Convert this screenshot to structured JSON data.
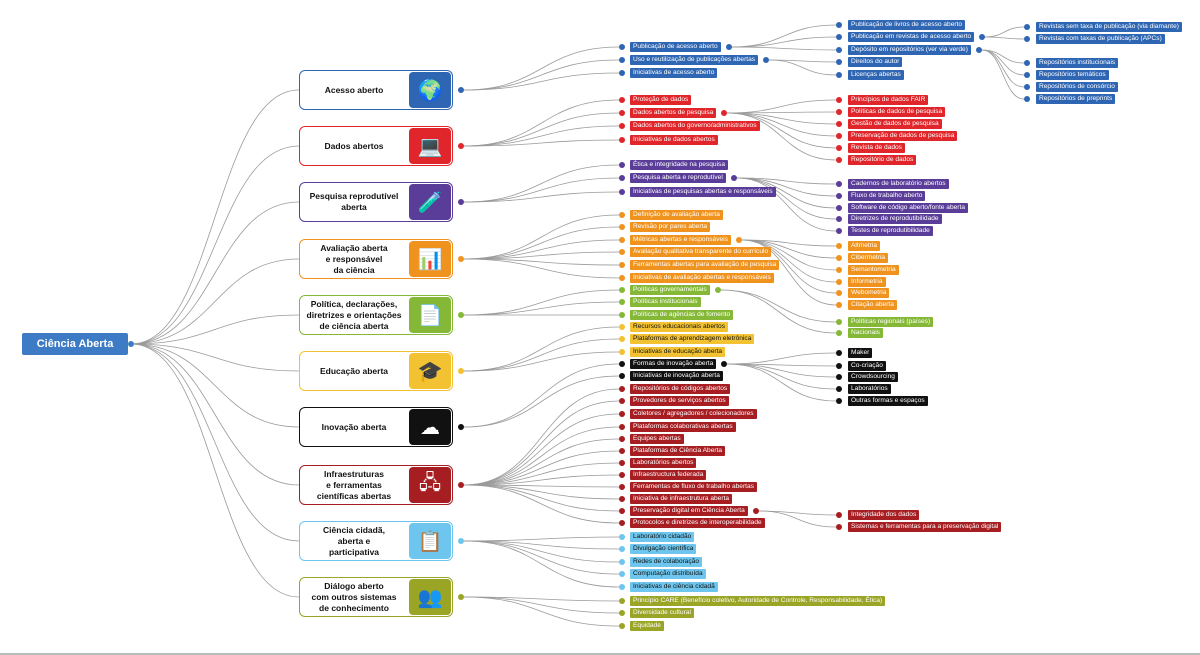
{
  "root": {
    "label": "Ciência Aberta",
    "color": "#3d7cc4"
  },
  "categories": [
    {
      "title": "Acesso aberto",
      "color": "#2f66b3",
      "text": "#ffffff",
      "icon": "globe-magnifier-icon",
      "glyph": "🌍",
      "items": [
        {
          "label": "Publicação de acesso aberto",
          "children": [
            {
              "label": "Publicação de livros de acesso aberto"
            },
            {
              "label": "Publicação em revistas de acesso aberto",
              "children": [
                {
                  "label": "Revistas sem taxa de publicação (via diamante)"
                },
                {
                  "label": "Revistas com taxas de publicação (APCs)"
                }
              ]
            },
            {
              "label": "Depósito em repositórios (ver via verde)",
              "children": [
                {
                  "label": "Repositórios institucionais"
                },
                {
                  "label": "Repositórios temáticos"
                },
                {
                  "label": "Repositórios de consórcio"
                },
                {
                  "label": "Repositórios de preprints"
                }
              ]
            }
          ]
        },
        {
          "label": "Uso e reutilização de publicações abertas",
          "children": [
            {
              "label": "Direitos do autor"
            },
            {
              "label": "Licenças abertas"
            }
          ]
        },
        {
          "label": "Iniciativas de acesso aberto"
        }
      ]
    },
    {
      "title": "Dados abertos",
      "color": "#e0262a",
      "text": "#ffffff",
      "icon": "laptop-data-icon",
      "glyph": "💻",
      "items": [
        {
          "label": "Proteção de dados"
        },
        {
          "label": "Dados abertos de pesquisa",
          "children": [
            {
              "label": "Princípios de dados FAIR"
            },
            {
              "label": "Políticas de dados de pesquisa"
            },
            {
              "label": "Gestão de dados de pesquisa"
            },
            {
              "label": "Preservação de dados de pesquisa"
            },
            {
              "label": "Revista de dados"
            },
            {
              "label": "Repositório de dados"
            }
          ]
        },
        {
          "label": "Dados abertos do governo/administrativos"
        },
        {
          "label": "Iniciativas de dados abertos"
        }
      ]
    },
    {
      "title": "Pesquisa reprodutível\naberta",
      "color": "#5a3d98",
      "text": "#ffffff",
      "icon": "lab-kit-icon",
      "glyph": "🧪",
      "items": [
        {
          "label": "Ética e integridade na pesquisa"
        },
        {
          "label": "Pesquisa aberta e reprodutível",
          "children": [
            {
              "label": "Cadernos de laboratório abertos"
            },
            {
              "label": "Fluxo de trabalho aberto"
            },
            {
              "label": "Software de código aberto/fonte aberta"
            },
            {
              "label": "Diretrizes de reprodutibilidade"
            },
            {
              "label": "Testes de reprodutibilidade"
            }
          ]
        },
        {
          "label": "Iniciativas de pesquisas abertas e responsáveis"
        }
      ]
    },
    {
      "title": "Avaliação aberta\ne responsável\nda ciência",
      "color": "#f0931e",
      "text": "#ffffff",
      "icon": "evaluation-icon",
      "glyph": "📊",
      "items": [
        {
          "label": "Definição de avaliação aberta"
        },
        {
          "label": "Revisão por pares aberta"
        },
        {
          "label": "Métricas abertas e responsáveis",
          "children": [
            {
              "label": "Altmetria"
            },
            {
              "label": "Cibermetria"
            },
            {
              "label": "Semantometria"
            },
            {
              "label": "Informetria"
            },
            {
              "label": "Webometria"
            },
            {
              "label": "Citação aberta"
            }
          ]
        },
        {
          "label": "Avaliação qualitativa transparente do currículo"
        },
        {
          "label": "Ferramentas abertas para avaliação de pesquisa"
        },
        {
          "label": "Iniciativas de avaliação abertas e responsáveis"
        }
      ]
    },
    {
      "title": "Política, declarações,\ndiretrizes e orientações\nde ciência aberta",
      "color": "#84b836",
      "text": "#ffffff",
      "icon": "documents-icon",
      "glyph": "📄",
      "items": [
        {
          "label": "Políticas governamentais",
          "children": [
            {
              "label": "Políticas regionais (países)"
            },
            {
              "label": "Nacionais"
            }
          ]
        },
        {
          "label": "Políticas institucionais"
        },
        {
          "label": "Políticas de agências de fomento"
        }
      ]
    },
    {
      "title": "Educação aberta",
      "color": "#f2c232",
      "text": "#111111",
      "icon": "laptop-education-icon",
      "glyph": "🎓",
      "items": [
        {
          "label": "Recursos educacionais abertos"
        },
        {
          "label": "Plataformas de aprendizagem eletrônica"
        },
        {
          "label": "Iniciativas de educação aberta"
        }
      ]
    },
    {
      "title": "Inovação aberta",
      "color": "#111111",
      "text": "#ffffff",
      "icon": "cloud-innovation-icon",
      "glyph": "☁",
      "items": [
        {
          "label": "Formas de inovação aberta",
          "children": [
            {
              "label": "Maker"
            },
            {
              "label": "Co-criação"
            },
            {
              "label": "Crowdsourcing"
            },
            {
              "label": "Laboratórios"
            },
            {
              "label": "Outras formas e espaços"
            }
          ]
        },
        {
          "label": "Iniciativas de inovação aberta"
        }
      ]
    },
    {
      "title": "Infraestruturas\ne ferramentas\ncientíficas abertas",
      "color": "#a61d22",
      "text": "#ffffff",
      "icon": "infrastructure-icon",
      "glyph": "🖧",
      "items": [
        {
          "label": "Repositórios de códigos abertos"
        },
        {
          "label": "Provedores de serviços abertos"
        },
        {
          "label": "Coletores / agregadores / colecionadores"
        },
        {
          "label": "Plataformas colaborativas abertas"
        },
        {
          "label": "Equipes abertas"
        },
        {
          "label": "Plataformas de Ciência Aberta"
        },
        {
          "label": "Laboratórios abertos"
        },
        {
          "label": "Infraestructura federada"
        },
        {
          "label": "Ferramentas de fluxo de trabalho abertas"
        },
        {
          "label": "Iniciativa de infraestrutura aberta"
        },
        {
          "label": "Preservação digital em Ciência Aberta",
          "children": [
            {
              "label": "Integridade dos dados"
            },
            {
              "label": "Sistemas e ferramentas para a preservação digital"
            }
          ]
        },
        {
          "label": "Protocolos e diretrizes de interoperabilidade"
        }
      ]
    },
    {
      "title": "Ciência cidadã,\naberta e\nparticipativa",
      "color": "#6ec6ee",
      "text": "#111111",
      "icon": "document-list-icon",
      "glyph": "📋",
      "items": [
        {
          "label": "Laboratório cidadão"
        },
        {
          "label": "Divulgação científica"
        },
        {
          "label": "Redes de colaboração"
        },
        {
          "label": "Computação distribuída"
        },
        {
          "label": "Iniciativas de ciência cidadã"
        }
      ]
    },
    {
      "title": "Diálogo aberto\ncom outros sistemas\nde conhecimento",
      "color": "#9aa425",
      "text": "#ffffff",
      "icon": "people-dialogue-icon",
      "glyph": "👥",
      "items": [
        {
          "label": "Princípio CARE (Benefício coletivo, Autoridade de Controle, Responsabilidade, Ética)"
        },
        {
          "label": "Diversidade cultural"
        },
        {
          "label": "Equidade"
        }
      ]
    }
  ]
}
